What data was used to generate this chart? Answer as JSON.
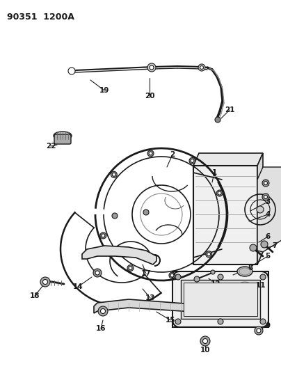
{
  "title": "90351  1200A",
  "bg": "#ffffff",
  "lc": "#1a1a1a",
  "fig_w": 4.04,
  "fig_h": 5.33,
  "dpi": 100
}
